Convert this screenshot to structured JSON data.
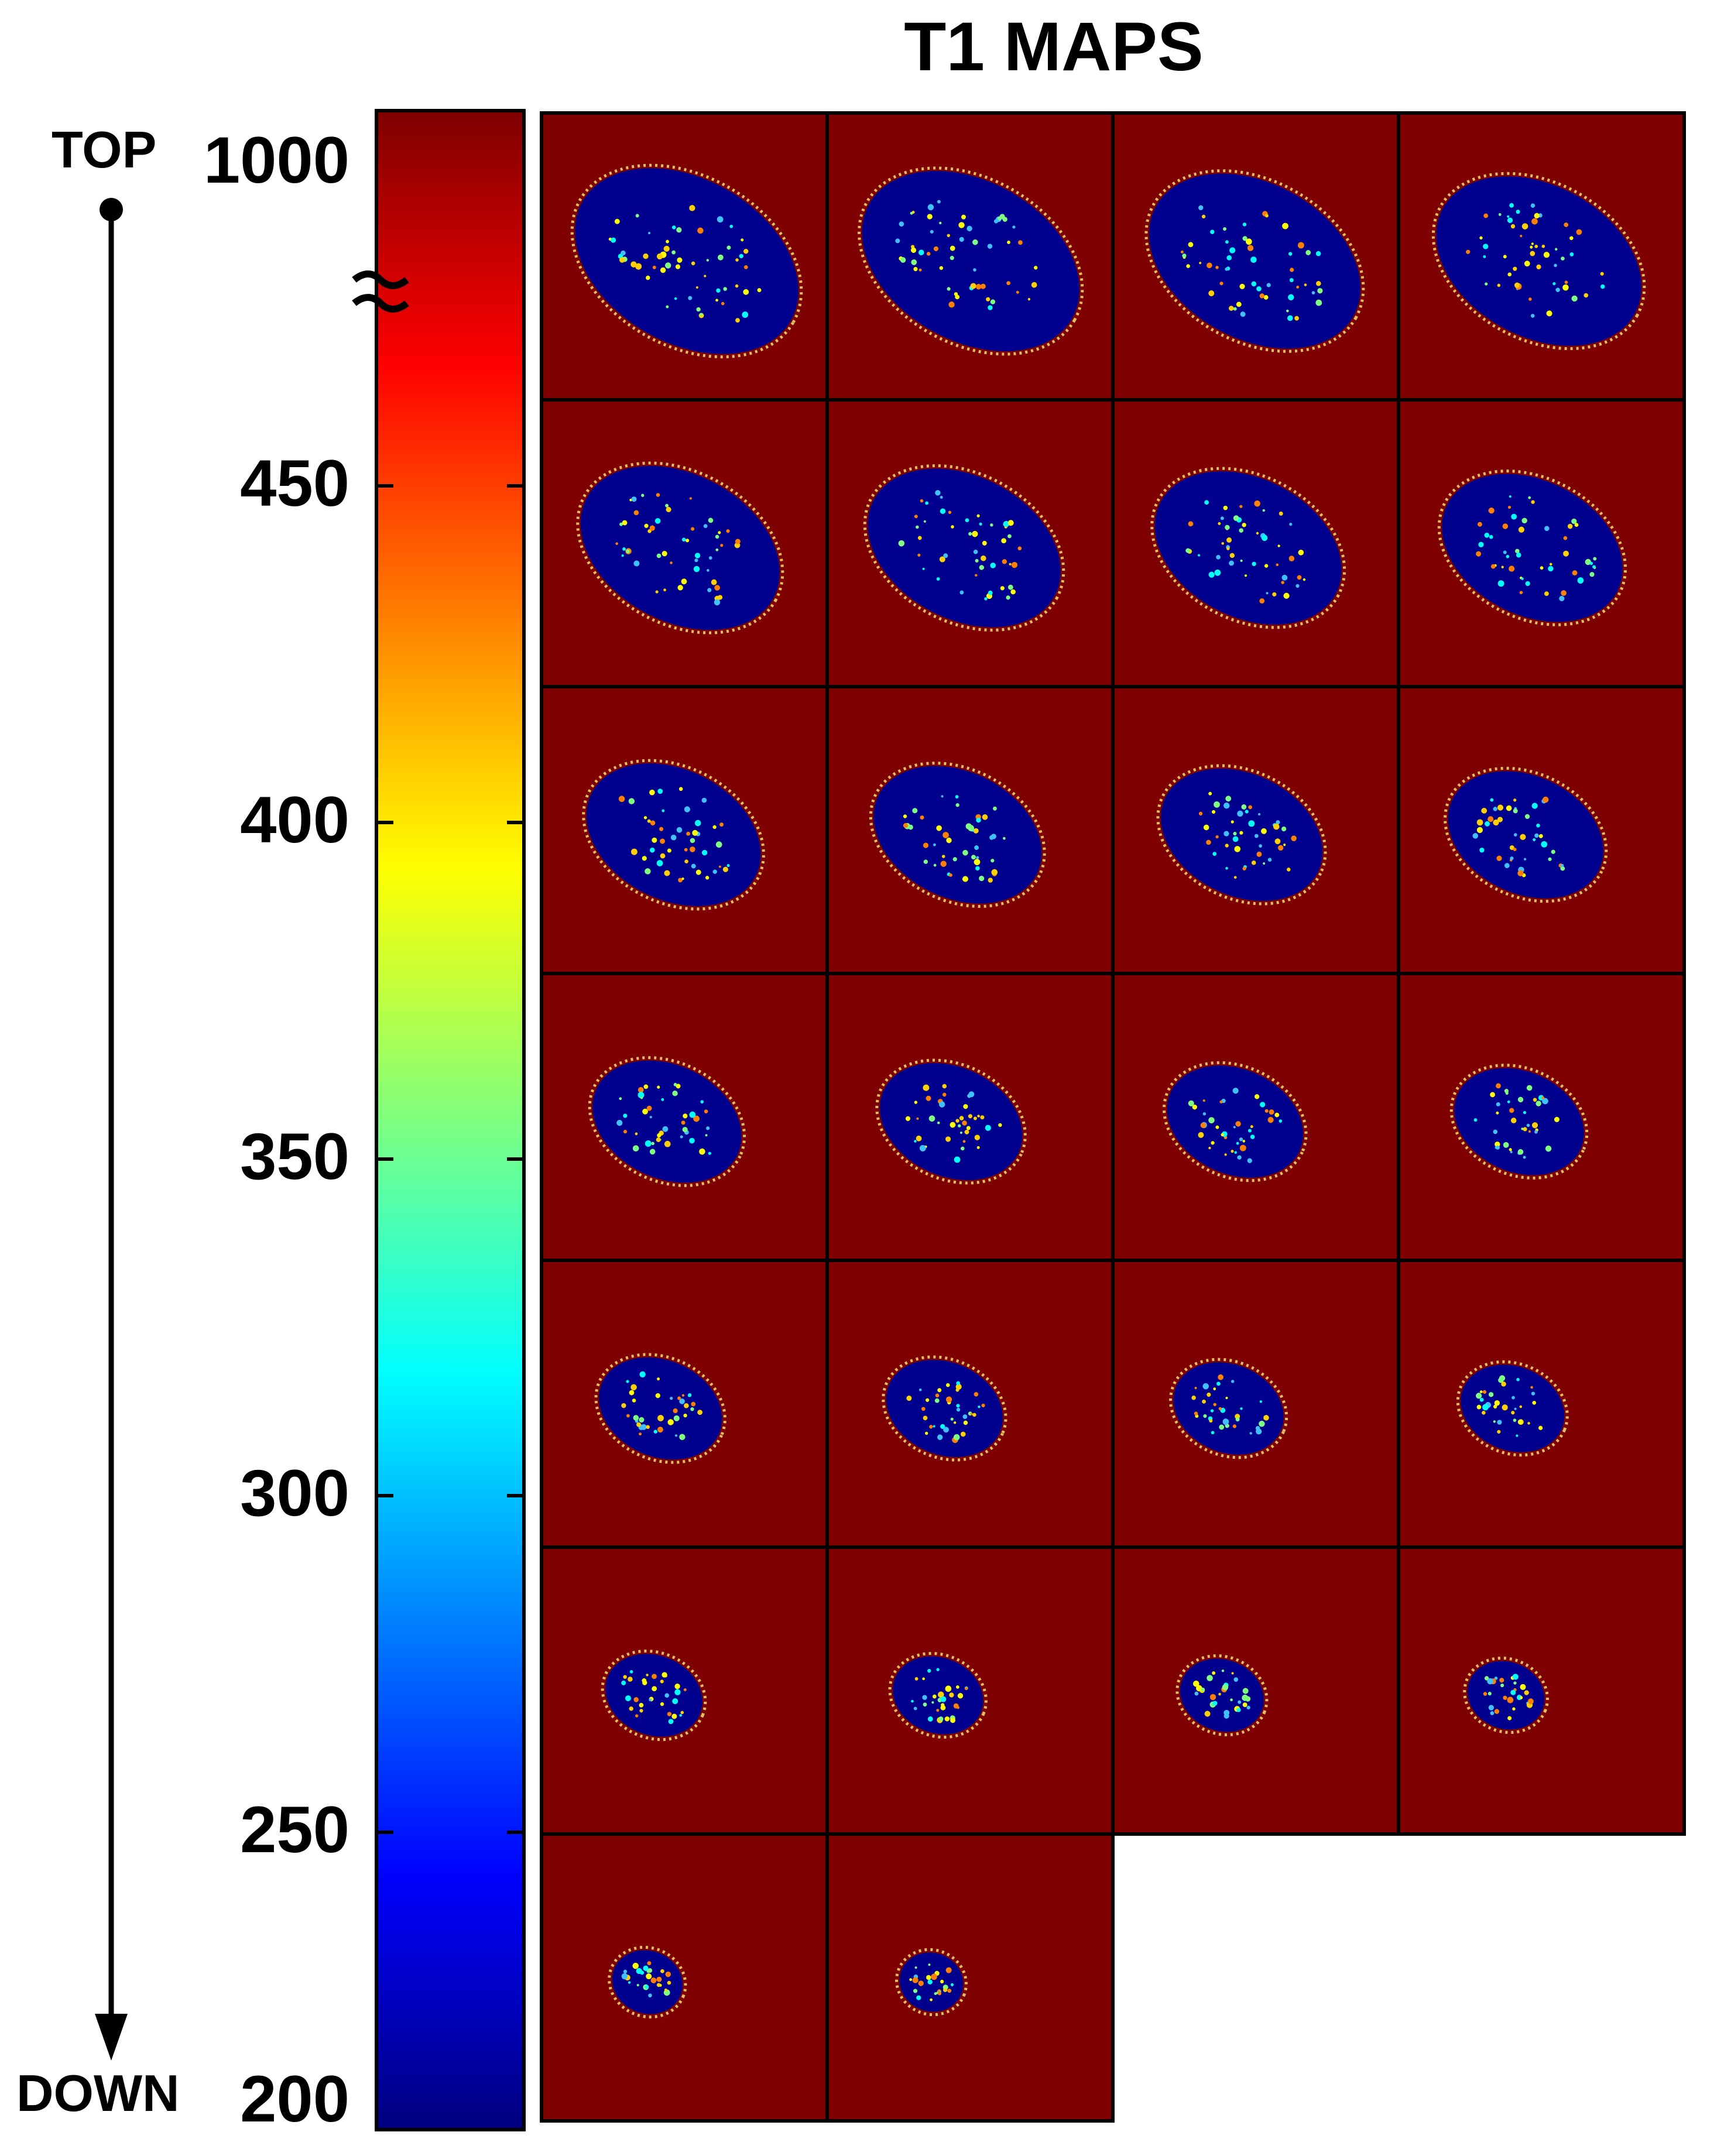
{
  "title": "T1 MAPS",
  "direction": {
    "top_label": "TOP",
    "bottom_label": "DOWN"
  },
  "colorbar": {
    "colormap": "jet",
    "ticks": [
      "1000",
      "450",
      "400",
      "350",
      "300",
      "250",
      "200"
    ],
    "axis_break": true,
    "colors": {
      "high": "#7f0000",
      "low": "#00007f"
    }
  },
  "maps": {
    "rows": 7,
    "columns": 4,
    "slice_count": 26,
    "background_color": "#7f0000",
    "tissue_color": "#00008f"
  }
}
